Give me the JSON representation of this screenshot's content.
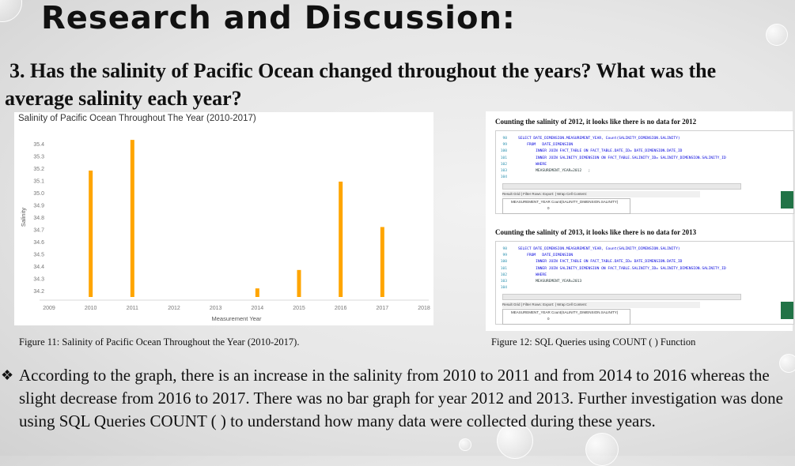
{
  "slide": {
    "title": "Research and Discussion:",
    "question": "3. Has the salinity of Pacific Ocean changed throughout the years? What was the average salinity each year?",
    "question_line1": "3. Has the salinity of Pacific Ocean changed throughout the years? What was the",
    "question_line2": "average salinity each year?",
    "figure11_caption": "Figure 11: Salinity of Pacific Ocean Throughout the Year (2010-2017).",
    "figure12_caption": "Figure 12: SQL Queries using COUNT ( ) Function",
    "bullet_glyph": "❖",
    "bullet_text": "According to the graph, there is an increase in the salinity from 2010 to 2011 and from 2014 to 2016 whereas the slight decrease from 2016 to 2017. There was no bar graph for year 2012 and 2013. Further investigation was done using SQL Queries COUNT ( ) to understand how many data were collected during these years."
  },
  "chart_data": {
    "type": "bar",
    "title": "Salinity of Pacific Ocean Throughout The Year (2010-2017)",
    "xlabel": "Measurement Year",
    "ylabel": "Salinity",
    "x_ticks": [
      "2009",
      "2010",
      "2011",
      "2012",
      "2013",
      "2014",
      "2015",
      "2016",
      "2017",
      "2018"
    ],
    "y_ticks": [
      "34.2",
      "34.3",
      "34.4",
      "34.5",
      "34.6",
      "34.7",
      "34.8",
      "34.9",
      "35.0",
      "35.1",
      "35.2",
      "35.3",
      "35.4"
    ],
    "ylim": [
      34.15,
      35.45
    ],
    "categories": [
      "2010",
      "2011",
      "2014",
      "2015",
      "2016",
      "2017"
    ],
    "values": [
      35.18,
      35.43,
      34.22,
      34.37,
      35.09,
      34.72
    ],
    "bar_color": "#ffa500",
    "grid": false
  },
  "sql_panels": [
    {
      "heading": "Counting the salinity of 2012, it looks like there is no data for 2012",
      "code_lines": [
        {
          "ln": "98",
          "text": "SELECT DATE_DIMENSION.MEASUREMENT_YEAR, Count(SALINITY_DIMENSION.SALINITY)"
        },
        {
          "ln": "99",
          "text": "    FROM   DATE_DIMENSION"
        },
        {
          "ln": "100",
          "text": "        INNER JOIN FACT_TABLE ON FACT_TABLE.DATE_ID= DATE_DIMENSION.DATE_ID"
        },
        {
          "ln": "101",
          "text": "        INNER JOIN SALINITY_DIMENSION ON FACT_TABLE.SALINITY_ID= SALINITY_DIMENSION.SALINITY_ID"
        },
        {
          "ln": "102",
          "text": "        WHERE"
        },
        {
          "ln": "103",
          "text": "        MEASUREMENT_YEAR=2012   ;"
        },
        {
          "ln": "104",
          "text": ""
        }
      ],
      "result_tabs": "Result Grid  |  Filter Rows:                    Export:    |  Wrap Cell Content:",
      "result_header": "MEASUREMENT_YEAR    Count(SALINITY_DIMENSION.SALINITY)",
      "result_value": "0"
    },
    {
      "heading": "Counting the salinity of 2013, it looks like there is no data for 2013",
      "code_lines": [
        {
          "ln": "98",
          "text": "SELECT DATE_DIMENSION.MEASUREMENT_YEAR, Count(SALINITY_DIMENSION.SALINITY)"
        },
        {
          "ln": "99",
          "text": "    FROM   DATE_DIMENSION"
        },
        {
          "ln": "100",
          "text": "        INNER JOIN FACT_TABLE ON FACT_TABLE.DATE_ID= DATE_DIMENSION.DATE_ID"
        },
        {
          "ln": "101",
          "text": "        INNER JOIN SALINITY_DIMENSION ON FACT_TABLE.SALINITY_ID= SALINITY_DIMENSION.SALINITY_ID"
        },
        {
          "ln": "102",
          "text": "        WHERE"
        },
        {
          "ln": "103",
          "text": "        MEASUREMENT_YEAR=2013"
        },
        {
          "ln": "104",
          "text": ""
        }
      ],
      "result_tabs": "Result Grid  |  Filter Rows:                    Export:    |  Wrap Cell Content:",
      "result_header": "MEASUREMENT_YEAR    Count(SALINITY_DIMENSION.SALINITY)",
      "result_value": "0"
    }
  ]
}
